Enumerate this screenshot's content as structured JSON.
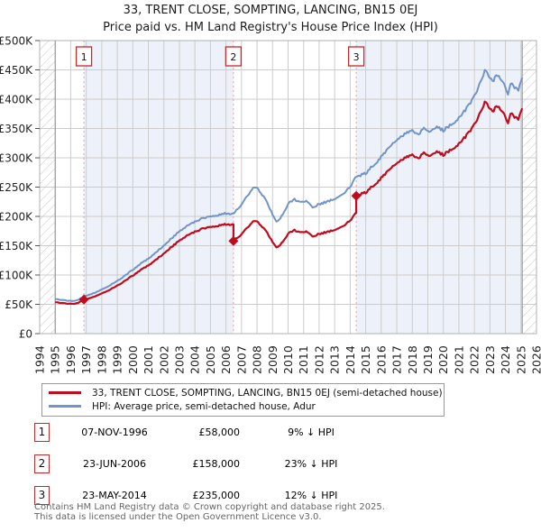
{
  "title": "33, TRENT CLOSE, SOMPTING, LANCING, BN15 0EJ",
  "subtitle": "Price paid vs. HM Land Registry's House Price Index (HPI)",
  "chart_data": {
    "type": "line",
    "x_axis": {
      "min": 1994,
      "max": 2026,
      "tick_labels": [
        1994,
        1995,
        1996,
        1997,
        1998,
        1999,
        2000,
        2001,
        2002,
        2003,
        2004,
        2005,
        2006,
        2007,
        2008,
        2009,
        2010,
        2011,
        2012,
        2013,
        2014,
        2015,
        2016,
        2017,
        2018,
        2019,
        2020,
        2021,
        2022,
        2023,
        2024,
        2025,
        2026
      ]
    },
    "y_axis": {
      "min": 0,
      "max": 500,
      "unit": "GBP thousands",
      "ticks": [
        [
          0,
          "£0"
        ],
        [
          50,
          "£50K"
        ],
        [
          100,
          "£100K"
        ],
        [
          150,
          "£150K"
        ],
        [
          200,
          "£200K"
        ],
        [
          250,
          "£250K"
        ],
        [
          300,
          "£300K"
        ],
        [
          350,
          "£350K"
        ],
        [
          400,
          "£400K"
        ],
        [
          450,
          "£450K"
        ],
        [
          500,
          "£500K"
        ]
      ]
    },
    "grid": true,
    "data_start": 1995.0,
    "data_end": 2025.08,
    "hatched_regions": [
      [
        1994,
        1995.0
      ],
      [
        2025.08,
        2026
      ]
    ],
    "shaded_regions": [
      [
        1996.85,
        2006.48
      ],
      [
        2014.39,
        2025.08
      ]
    ],
    "colors": {
      "red": "#bf0d1f",
      "blue": "#7195c8",
      "band": "#edf1f9",
      "dashed": "#f29a9a",
      "marker_box": "#c52a2a",
      "grid": "#cccccc",
      "border": "#b0b0b0",
      "edge": "#8c8c8c",
      "hatch": "#c6c6c6"
    },
    "series": [
      {
        "name": "HPI: Average price, semi-detached house, Adur",
        "role": "hpi",
        "anchors": [
          [
            1995,
            59
          ],
          [
            1995.4,
            57.5
          ],
          [
            1995.8,
            56.5
          ],
          [
            1996.2,
            56
          ],
          [
            1996.5,
            58
          ],
          [
            1996.85,
            64
          ],
          [
            1997.2,
            66
          ],
          [
            1997.6,
            70
          ],
          [
            1998,
            76
          ],
          [
            1998.5,
            82
          ],
          [
            1999,
            90
          ],
          [
            1999.5,
            99
          ],
          [
            2000,
            109
          ],
          [
            2000.5,
            119
          ],
          [
            2001,
            128
          ],
          [
            2001.5,
            139
          ],
          [
            2002,
            150
          ],
          [
            2002.5,
            163
          ],
          [
            2003,
            174
          ],
          [
            2003.5,
            184
          ],
          [
            2004,
            191
          ],
          [
            2004.5,
            197
          ],
          [
            2005,
            200
          ],
          [
            2005.5,
            202
          ],
          [
            2006,
            205
          ],
          [
            2006.48,
            205
          ],
          [
            2007,
            219
          ],
          [
            2007.4,
            236
          ],
          [
            2007.85,
            251
          ],
          [
            2008.2,
            243
          ],
          [
            2008.6,
            226
          ],
          [
            2009,
            203
          ],
          [
            2009.3,
            190
          ],
          [
            2009.7,
            205
          ],
          [
            2010,
            221
          ],
          [
            2010.4,
            230
          ],
          [
            2010.8,
            223
          ],
          [
            2011.2,
            227
          ],
          [
            2011.6,
            216
          ],
          [
            2012,
            221
          ],
          [
            2012.5,
            225
          ],
          [
            2013,
            229
          ],
          [
            2013.5,
            237
          ],
          [
            2014,
            251
          ],
          [
            2014.39,
            267
          ],
          [
            2015,
            274
          ],
          [
            2015.5,
            287
          ],
          [
            2016,
            302
          ],
          [
            2016.5,
            317
          ],
          [
            2017,
            331
          ],
          [
            2017.5,
            340
          ],
          [
            2018,
            347
          ],
          [
            2018.4,
            341
          ],
          [
            2018.8,
            350
          ],
          [
            2019.2,
            344
          ],
          [
            2019.6,
            352
          ],
          [
            2020,
            347
          ],
          [
            2020.4,
            354
          ],
          [
            2020.9,
            363
          ],
          [
            2021.3,
            378
          ],
          [
            2021.7,
            391
          ],
          [
            2022,
            405
          ],
          [
            2022.4,
            428
          ],
          [
            2022.7,
            450
          ],
          [
            2023,
            436
          ],
          [
            2023.2,
            428
          ],
          [
            2023.45,
            443
          ],
          [
            2023.7,
            436
          ],
          [
            2023.95,
            425
          ],
          [
            2024.15,
            408
          ],
          [
            2024.4,
            431
          ],
          [
            2024.6,
            419
          ],
          [
            2024.8,
            414
          ],
          [
            2025,
            432
          ],
          [
            2025.08,
            438
          ]
        ]
      },
      {
        "name": "33, TRENT CLOSE, SOMPTING, LANCING, BN15 0EJ (semi-detached house)",
        "role": "price-paid-scaled",
        "segments": [
          {
            "until": 2006.48,
            "ratio": 0.91
          },
          {
            "until": 2014.39,
            "ratio": 0.77
          },
          {
            "until": 2026,
            "ratio": 0.88
          }
        ]
      }
    ],
    "sales": [
      {
        "label": "1",
        "year": 1996.85,
        "price_k": 58
      },
      {
        "label": "2",
        "year": 2006.48,
        "price_k": 158
      },
      {
        "label": "3",
        "year": 2014.39,
        "price_k": 235
      }
    ]
  },
  "legend": {
    "items": [
      {
        "label": "33, TRENT CLOSE, SOMPTING, LANCING, BN15 0EJ (semi-detached house)",
        "color": "#bf0d1f"
      },
      {
        "label": "HPI: Average price, semi-detached house, Adur",
        "color": "#7195c8"
      }
    ]
  },
  "table": {
    "rows": [
      {
        "num": "1",
        "date": "07-NOV-1996",
        "price": "£58,000",
        "hpi_diff": "9% ↓ HPI"
      },
      {
        "num": "2",
        "date": "23-JUN-2006",
        "price": "£158,000",
        "hpi_diff": "23% ↓ HPI"
      },
      {
        "num": "3",
        "date": "23-MAY-2014",
        "price": "£235,000",
        "hpi_diff": "12% ↓ HPI"
      }
    ]
  },
  "footer": {
    "line1": "Contains HM Land Registry data © Crown copyright and database right 2025.",
    "line2": "This data is licensed under the Open Government Licence v3.0."
  }
}
